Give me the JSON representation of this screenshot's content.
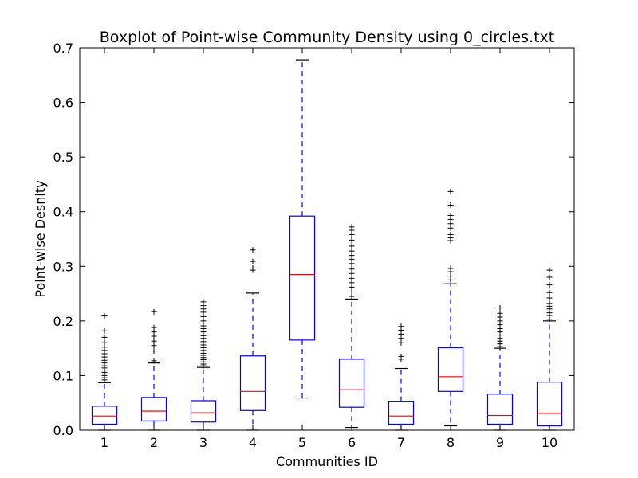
{
  "chart_data": {
    "type": "boxplot",
    "title": "Boxplot of Point-wise Community Density using 0_circles.txt",
    "xlabel": "Communities ID",
    "ylabel": "Point-wise Desnity",
    "ylim": [
      0.0,
      0.7
    ],
    "yticks": [
      "0.0",
      "0.1",
      "0.2",
      "0.3",
      "0.4",
      "0.5",
      "0.6",
      "0.7"
    ],
    "categories": [
      "1",
      "2",
      "3",
      "4",
      "5",
      "6",
      "7",
      "8",
      "9",
      "10"
    ],
    "grid": false,
    "boxes": [
      {
        "whisker_low": 0.0,
        "q1": 0.011,
        "median": 0.026,
        "q3": 0.044,
        "whisker_high": 0.087,
        "outliers": [
          0.092,
          0.096,
          0.1,
          0.103,
          0.106,
          0.11,
          0.114,
          0.118,
          0.123,
          0.128,
          0.134,
          0.14,
          0.146,
          0.152,
          0.16,
          0.17,
          0.182,
          0.209
        ]
      },
      {
        "whisker_low": 0.0,
        "q1": 0.017,
        "median": 0.035,
        "q3": 0.06,
        "whisker_high": 0.123,
        "outliers": [
          0.127,
          0.145,
          0.155,
          0.163,
          0.172,
          0.18,
          0.188,
          0.217
        ]
      },
      {
        "whisker_low": 0.0,
        "q1": 0.015,
        "median": 0.032,
        "q3": 0.054,
        "whisker_high": 0.115,
        "outliers": [
          0.118,
          0.121,
          0.125,
          0.129,
          0.133,
          0.137,
          0.141,
          0.146,
          0.151,
          0.156,
          0.162,
          0.168,
          0.173,
          0.18,
          0.186,
          0.191,
          0.196,
          0.2,
          0.208,
          0.216,
          0.222,
          0.228,
          0.235
        ]
      },
      {
        "whisker_low": 0.0,
        "q1": 0.036,
        "median": 0.071,
        "q3": 0.136,
        "whisker_high": 0.251,
        "outliers": [
          0.293,
          0.297,
          0.309,
          0.33
        ]
      },
      {
        "whisker_low": 0.059,
        "q1": 0.165,
        "median": 0.285,
        "q3": 0.392,
        "whisker_high": 0.678,
        "outliers": []
      },
      {
        "whisker_low": 0.005,
        "q1": 0.042,
        "median": 0.074,
        "q3": 0.13,
        "whisker_high": 0.24,
        "outliers": [
          0.245,
          0.253,
          0.262,
          0.27,
          0.278,
          0.287,
          0.295,
          0.305,
          0.313,
          0.32,
          0.328,
          0.337,
          0.348,
          0.358,
          0.366,
          0.372
        ]
      },
      {
        "whisker_low": 0.0,
        "q1": 0.011,
        "median": 0.026,
        "q3": 0.053,
        "whisker_high": 0.113,
        "outliers": [
          0.13,
          0.135,
          0.16,
          0.168,
          0.176,
          0.183,
          0.19
        ]
      },
      {
        "whisker_low": 0.008,
        "q1": 0.071,
        "median": 0.098,
        "q3": 0.151,
        "whisker_high": 0.268,
        "outliers": [
          0.275,
          0.282,
          0.29,
          0.296,
          0.347,
          0.352,
          0.358,
          0.37,
          0.378,
          0.386,
          0.393,
          0.412,
          0.437
        ]
      },
      {
        "whisker_low": 0.0,
        "q1": 0.011,
        "median": 0.027,
        "q3": 0.066,
        "whisker_high": 0.15,
        "outliers": [
          0.153,
          0.158,
          0.163,
          0.168,
          0.174,
          0.18,
          0.186,
          0.193,
          0.2,
          0.207,
          0.214,
          0.224
        ]
      },
      {
        "whisker_low": 0.0,
        "q1": 0.008,
        "median": 0.031,
        "q3": 0.088,
        "whisker_high": 0.2,
        "outliers": [
          0.203,
          0.21,
          0.215,
          0.222,
          0.227,
          0.232,
          0.242,
          0.252,
          0.266,
          0.28,
          0.293
        ]
      }
    ],
    "colors": {
      "box": "#0000ff",
      "median": "#ff0000",
      "whisker": "#0000ff",
      "cap": "#000000",
      "flier": "#000000"
    }
  }
}
